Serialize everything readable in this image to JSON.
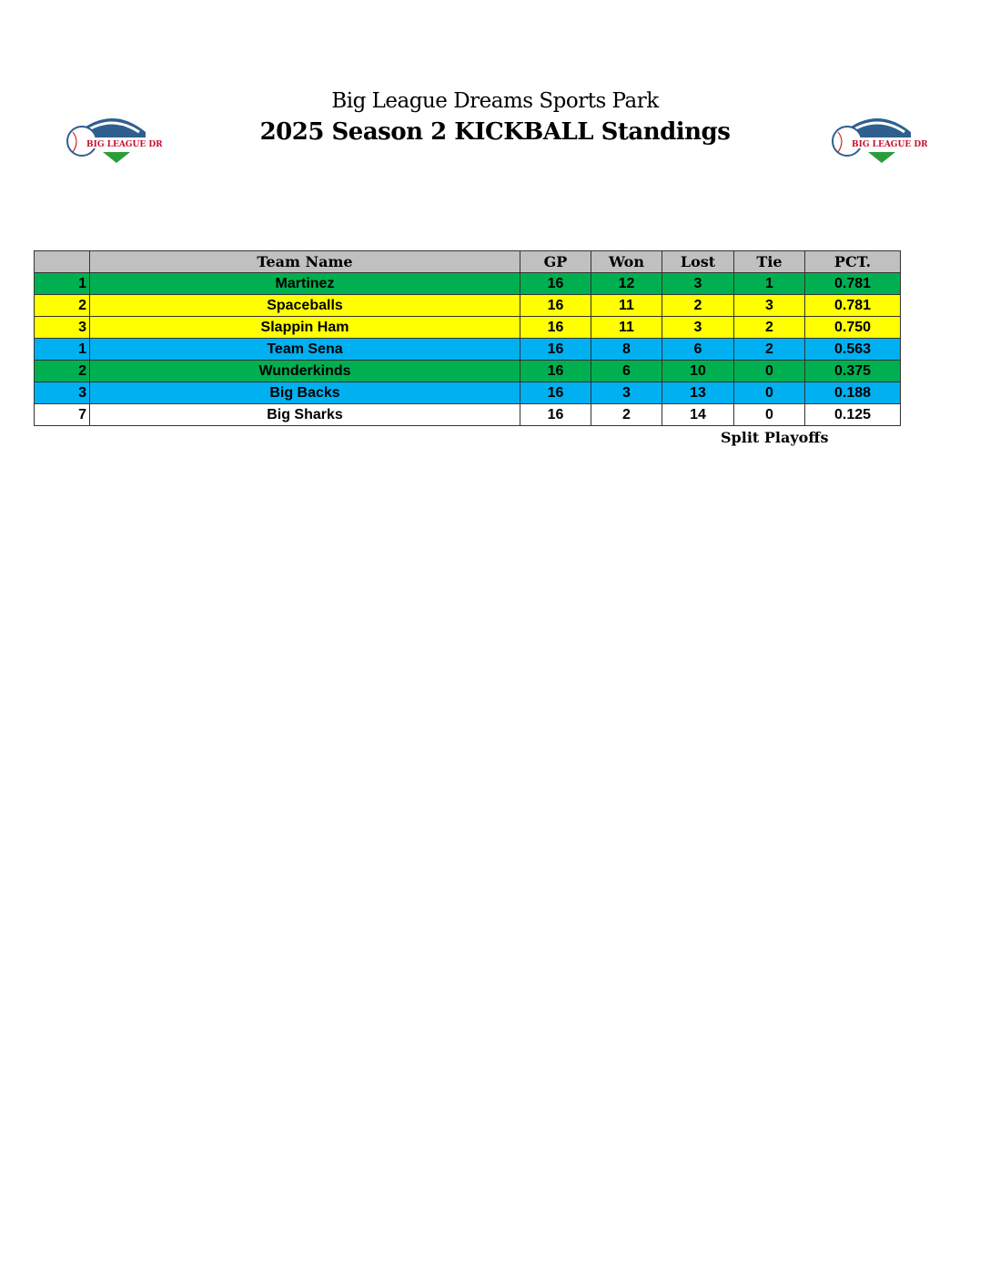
{
  "header": {
    "line1": "Big League Dreams Sports Park",
    "line2": "2025 Season 2 KICKBALL Standings",
    "logo_text": "BIG LEAGUE DREAMS SPORTS PARKS"
  },
  "table": {
    "columns": [
      "",
      "Team Name",
      "GP",
      "Won",
      "Lost",
      "Tie",
      "PCT."
    ],
    "rows": [
      {
        "rank": "1",
        "team": "Martinez",
        "gp": "16",
        "won": "12",
        "lost": "3",
        "tie": "1",
        "pct": "0.781",
        "color": "#00b050"
      },
      {
        "rank": "2",
        "team": "Spaceballs",
        "gp": "16",
        "won": "11",
        "lost": "2",
        "tie": "3",
        "pct": "0.781",
        "color": "#ffff00"
      },
      {
        "rank": "3",
        "team": "Slappin Ham",
        "gp": "16",
        "won": "11",
        "lost": "3",
        "tie": "2",
        "pct": "0.750",
        "color": "#ffff00"
      },
      {
        "rank": "1",
        "team": "Team Sena",
        "gp": "16",
        "won": "8",
        "lost": "6",
        "tie": "2",
        "pct": "0.563",
        "color": "#00b0f0"
      },
      {
        "rank": "2",
        "team": "Wunderkinds",
        "gp": "16",
        "won": "6",
        "lost": "10",
        "tie": "0",
        "pct": "0.375",
        "color": "#00b050"
      },
      {
        "rank": "3",
        "team": "Big Backs",
        "gp": "16",
        "won": "3",
        "lost": "13",
        "tie": "0",
        "pct": "0.188",
        "color": "#00b0f0"
      },
      {
        "rank": "7",
        "team": "Big Sharks",
        "gp": "16",
        "won": "2",
        "lost": "14",
        "tie": "0",
        "pct": "0.125",
        "color": "#ffffff"
      }
    ]
  },
  "note": "Split Playoffs"
}
